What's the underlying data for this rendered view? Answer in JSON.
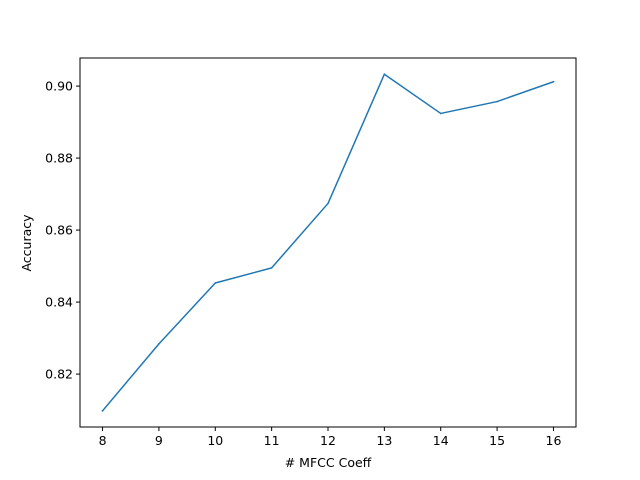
{
  "chart_data": {
    "type": "line",
    "title": "",
    "xlabel": "# MFCC Coeff",
    "ylabel": "Accuracy",
    "x": [
      8,
      9,
      10,
      11,
      12,
      13,
      14,
      15,
      16
    ],
    "series": [
      {
        "values": [
          0.8098,
          0.8284,
          0.8453,
          0.8495,
          0.8674,
          0.9033,
          0.8924,
          0.8957,
          0.9012
        ],
        "color": "#1f77b4"
      }
    ],
    "xlim": [
      7.6,
      16.4
    ],
    "ylim": [
      0.8053,
      0.9078
    ],
    "xticks": [
      "8",
      "9",
      "10",
      "11",
      "12",
      "13",
      "14",
      "15",
      "16"
    ],
    "yticks": [
      "0.82",
      "0.84",
      "0.86",
      "0.88",
      "0.90"
    ],
    "grid": false,
    "legend": "none"
  }
}
